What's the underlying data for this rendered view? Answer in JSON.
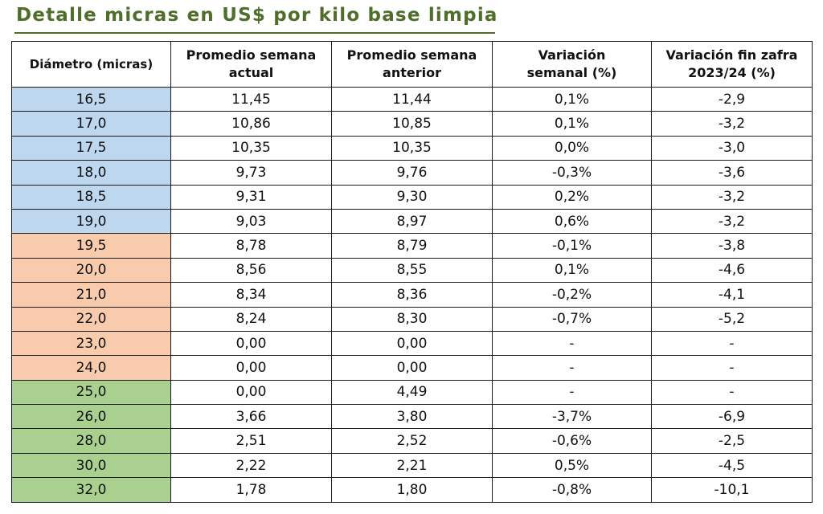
{
  "title": "Detalle micras en US$ por kilo base limpia",
  "colors": {
    "title": "#4e6e2a",
    "band_blue": "#bdd7ee",
    "band_orange": "#f8cbad",
    "band_green": "#a9d08e"
  },
  "table": {
    "headers": [
      [
        "Diámetro (micras)"
      ],
      [
        "Promedio semana",
        "actual"
      ],
      [
        "Promedio semana",
        "anterior"
      ],
      [
        "Variación",
        "semanal (%)"
      ],
      [
        "Variación fin zafra",
        "2023/24 (%)"
      ]
    ],
    "rows": [
      {
        "band": "blue",
        "cells": [
          "16,5",
          "11,45",
          "11,44",
          "0,1%",
          "-2,9"
        ]
      },
      {
        "band": "blue",
        "cells": [
          "17,0",
          "10,86",
          "10,85",
          "0,1%",
          "-3,2"
        ]
      },
      {
        "band": "blue",
        "cells": [
          "17,5",
          "10,35",
          "10,35",
          "0,0%",
          "-3,0"
        ]
      },
      {
        "band": "blue",
        "cells": [
          "18,0",
          "9,73",
          "9,76",
          "-0,3%",
          "-3,6"
        ]
      },
      {
        "band": "blue",
        "cells": [
          "18,5",
          "9,31",
          "9,30",
          "0,2%",
          "-3,2"
        ]
      },
      {
        "band": "blue",
        "cells": [
          "19,0",
          "9,03",
          "8,97",
          "0,6%",
          "-3,2"
        ]
      },
      {
        "band": "orange",
        "cells": [
          "19,5",
          "8,78",
          "8,79",
          "-0,1%",
          "-3,8"
        ]
      },
      {
        "band": "orange",
        "cells": [
          "20,0",
          "8,56",
          "8,55",
          "0,1%",
          "-4,6"
        ]
      },
      {
        "band": "orange",
        "cells": [
          "21,0",
          "8,34",
          "8,36",
          "-0,2%",
          "-4,1"
        ]
      },
      {
        "band": "orange",
        "cells": [
          "22,0",
          "8,24",
          "8,30",
          "-0,7%",
          "-5,2"
        ]
      },
      {
        "band": "orange",
        "cells": [
          "23,0",
          "0,00",
          "0,00",
          "-",
          "-"
        ]
      },
      {
        "band": "orange",
        "cells": [
          "24,0",
          "0,00",
          "0,00",
          "-",
          "-"
        ]
      },
      {
        "band": "green",
        "cells": [
          "25,0",
          "0,00",
          "4,49",
          "-",
          "-"
        ]
      },
      {
        "band": "green",
        "cells": [
          "26,0",
          "3,66",
          "3,80",
          "-3,7%",
          "-6,9"
        ]
      },
      {
        "band": "green",
        "cells": [
          "28,0",
          "2,51",
          "2,52",
          "-0,6%",
          "-2,5"
        ]
      },
      {
        "band": "green",
        "cells": [
          "30,0",
          "2,22",
          "2,21",
          "0,5%",
          "-4,5"
        ]
      },
      {
        "band": "green",
        "cells": [
          "32,0",
          "1,78",
          "1,80",
          "-0,8%",
          "-10,1"
        ]
      }
    ]
  }
}
